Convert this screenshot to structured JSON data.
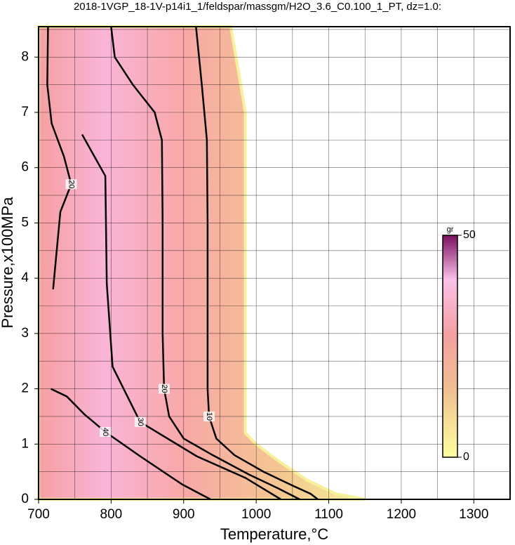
{
  "chart_data": {
    "type": "contour",
    "title": "2018-1VGP_18-1V-p14i1_1/feldspar/massgm/H2O_3.6_C0.100_1_PT, dz=1.0:",
    "x_label": "Temperature,°C",
    "y_label": "Pressure,x100MPa",
    "xlim": [
      700,
      1350
    ],
    "ylim": [
      0,
      8.55
    ],
    "xticks": [
      700,
      800,
      900,
      1000,
      1100,
      1200,
      1300
    ],
    "yticks": [
      0,
      1,
      2,
      3,
      4,
      5,
      6,
      7,
      8
    ],
    "xgrid": [
      750,
      800,
      850,
      900,
      950,
      1000,
      1050,
      1100,
      1150,
      1200,
      1250,
      1300
    ],
    "ygrid": [
      0.5,
      1,
      1.5,
      2,
      2.5,
      3,
      3.5,
      4,
      4.5,
      5,
      5.5,
      6,
      6.5,
      7,
      7.5,
      8,
      8.5
    ],
    "domain": {
      "x": [
        700,
        700,
        965,
        985,
        985,
        1000,
        1030,
        1070,
        1110,
        1150
      ],
      "y": [
        0,
        8.55,
        8.55,
        7,
        1.2,
        1,
        0.7,
        0.35,
        0.1,
        0
      ]
    },
    "contours": [
      {
        "level": 10,
        "x": [
          917,
          925,
          932,
          933,
          933,
          933,
          935,
          945,
          970,
          1010,
          1050,
          1075,
          1085
        ],
        "y": [
          8.55,
          7.5,
          6.5,
          5,
          3,
          2,
          1.5,
          1.1,
          0.8,
          0.5,
          0.25,
          0.1,
          0
        ]
      },
      {
        "level": 20,
        "x": [
          800,
          805,
          830,
          860,
          870,
          871,
          871,
          873,
          880,
          900,
          940,
          990,
          1030,
          1060
        ],
        "y": [
          8.55,
          8,
          7.5,
          7,
          6.5,
          5,
          3,
          2,
          1.5,
          1.1,
          0.8,
          0.45,
          0.2,
          0
        ]
      },
      {
        "level": 20,
        "x": [
          713,
          712,
          718,
          735,
          745,
          730,
          725,
          720
        ],
        "y": [
          8.55,
          7.5,
          6.8,
          6.2,
          5.7,
          5.2,
          4.5,
          3.8
        ]
      },
      {
        "level": 30,
        "x": [
          760,
          792,
          794,
          802,
          840,
          918,
          985,
          1034
        ],
        "y": [
          6.6,
          5.85,
          3.9,
          2.4,
          1.4,
          0.78,
          0.39,
          0
        ]
      },
      {
        "level": 40,
        "x": [
          717,
          739,
          763,
          792,
          840,
          898,
          937
        ],
        "y": [
          2,
          1.86,
          1.54,
          1.22,
          0.78,
          0.27,
          0
        ]
      }
    ],
    "colorbar": {
      "label": "gr",
      "lim": [
        0,
        50
      ],
      "ticks": [
        0,
        50
      ]
    }
  }
}
